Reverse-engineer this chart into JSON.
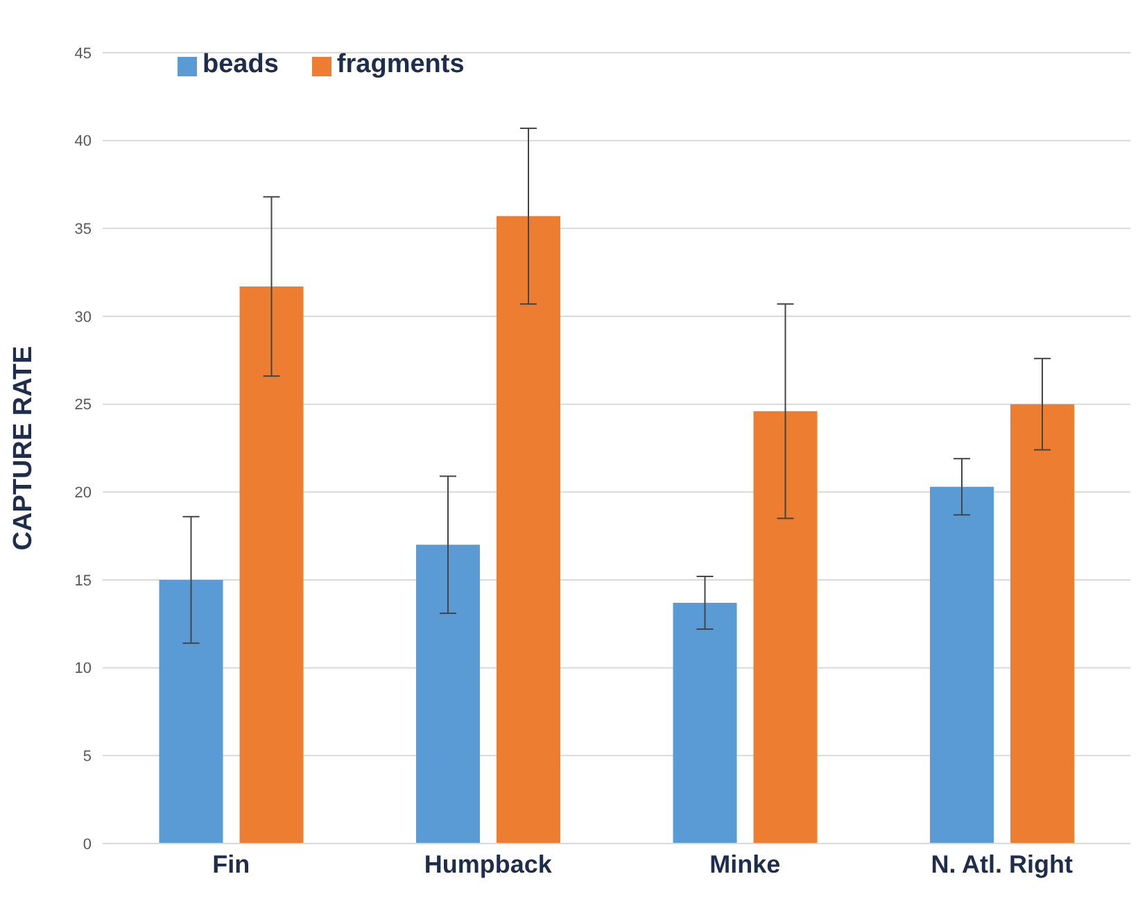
{
  "chart_data": {
    "type": "bar",
    "ylabel": "CAPTURE RATE",
    "categories": [
      "Fin",
      "Humpback",
      "Minke",
      "N. Atl. Right"
    ],
    "series": [
      {
        "name": "beads",
        "color": "#5b9bd5",
        "values": [
          15.0,
          17.0,
          13.7,
          20.3
        ],
        "errors": [
          3.6,
          3.9,
          1.5,
          1.6
        ]
      },
      {
        "name": "fragments",
        "color": "#ed7d31",
        "values": [
          31.7,
          35.7,
          24.6,
          25.0
        ],
        "errors": [
          5.1,
          5.0,
          6.1,
          2.6
        ]
      }
    ],
    "ylim": [
      0,
      45
    ],
    "yticks": [
      0,
      5,
      10,
      15,
      20,
      25,
      30,
      35,
      40,
      45
    ],
    "grid": "y",
    "legend": "top left"
  }
}
